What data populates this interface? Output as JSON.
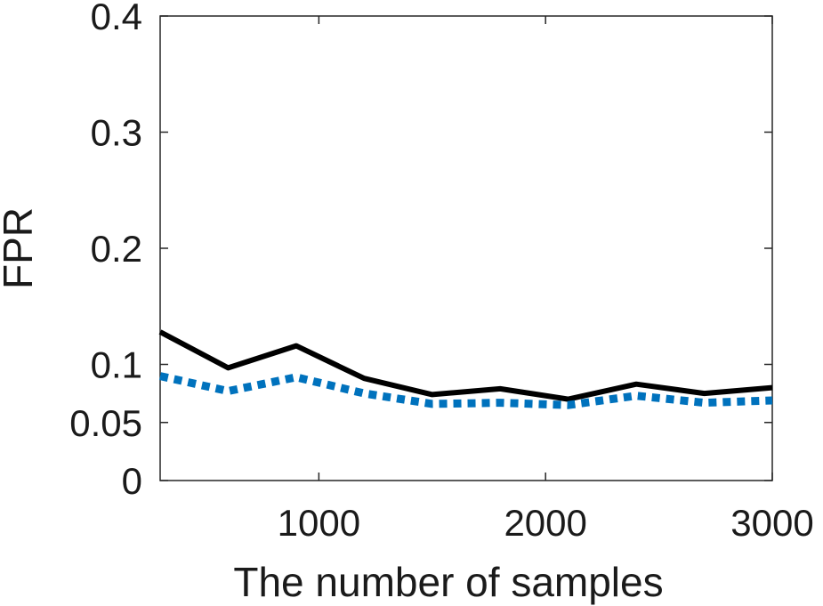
{
  "chart_data": {
    "type": "line",
    "title": "",
    "xlabel": "The number of samples",
    "ylabel": "FPR",
    "xlim": [
      300,
      3000
    ],
    "ylim": [
      0,
      0.4
    ],
    "xticks": [
      1000,
      2000,
      3000
    ],
    "xtick_labels": [
      "1000",
      "2000",
      "3000"
    ],
    "yticks": [
      0,
      0.05,
      0.1,
      0.2,
      0.3,
      0.4
    ],
    "ytick_labels": [
      "0",
      "0.05",
      "0.1",
      "0.2",
      "0.3",
      "0.4"
    ],
    "grid": false,
    "legend": "none",
    "x": [
      300,
      600,
      900,
      1200,
      1500,
      1800,
      2100,
      2400,
      2700,
      3000
    ],
    "series": [
      {
        "values": [
          0.128,
          0.097,
          0.116,
          0.088,
          0.074,
          0.079,
          0.07,
          0.083,
          0.075,
          0.08
        ],
        "color": "#000000",
        "line_style": "solid"
      },
      {
        "values": [
          0.09,
          0.077,
          0.089,
          0.075,
          0.066,
          0.067,
          0.065,
          0.073,
          0.067,
          0.069
        ],
        "color": "#0072BD",
        "line_style": "dotted"
      }
    ]
  }
}
